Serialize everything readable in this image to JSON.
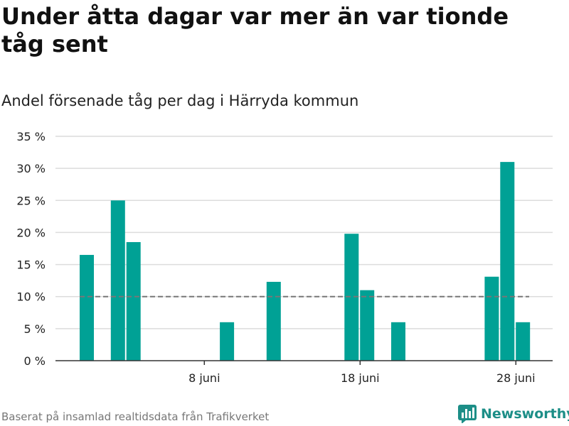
{
  "header": {
    "title": "Under åtta dagar var mer än var tionde tåg sent",
    "subtitle": "Andel försenade tåg per dag i Härryda kommun"
  },
  "footer": {
    "source": "Baserat på insamlad realtidsdata från Trafikverket",
    "brand": "Newsworthy"
  },
  "colors": {
    "bar": "#00a195",
    "grid": "#dcdcdc",
    "reference": "#777777",
    "brand": "#1c8e87"
  },
  "chart_data": {
    "type": "bar",
    "title": "Andel försenade tåg per dag i Härryda kommun",
    "xlabel": "",
    "ylabel": "",
    "ylim": [
      0,
      35
    ],
    "yticks": [
      0,
      5,
      10,
      15,
      20,
      25,
      30,
      35
    ],
    "ytick_labels": [
      "0 %",
      "5 %",
      "10 %",
      "15 %",
      "20 %",
      "25 %",
      "30 %",
      "35 %"
    ],
    "x_days": [
      1,
      30
    ],
    "xticks": [
      {
        "day": 8,
        "label": "8 juni"
      },
      {
        "day": 18,
        "label": "18 juni"
      },
      {
        "day": 28,
        "label": "28 juni"
      }
    ],
    "categories": [
      1,
      2,
      3,
      4,
      5,
      6,
      7,
      8,
      9,
      10,
      11,
      12,
      13,
      14,
      15,
      16,
      17,
      18,
      19,
      20,
      21,
      22,
      23,
      24,
      25,
      26,
      27,
      28,
      29,
      30
    ],
    "values": [
      16.5,
      0,
      25,
      18.5,
      0,
      0,
      0,
      0,
      0,
      6,
      0,
      0,
      12.3,
      0,
      0,
      0,
      0,
      19.8,
      11,
      0,
      6,
      0,
      0,
      0,
      0,
      0,
      13.1,
      31,
      6,
      0
    ],
    "reference_line": 10
  }
}
